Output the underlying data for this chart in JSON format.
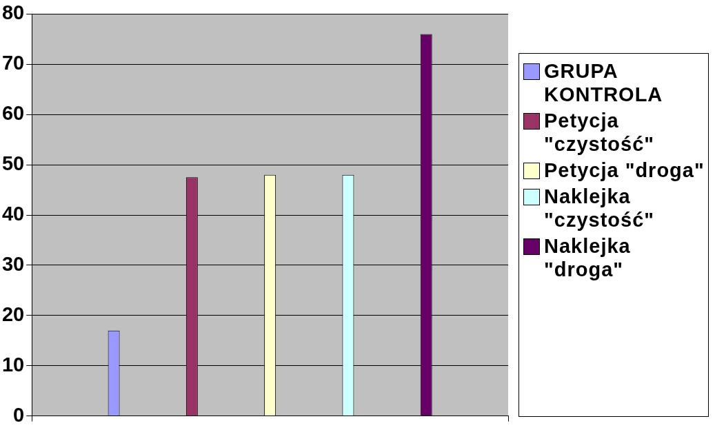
{
  "chart_data": {
    "type": "bar",
    "categories": [
      null
    ],
    "series": [
      {
        "name": "GRUPA KONTROLA",
        "color": "#9999ff",
        "values": [
          17
        ]
      },
      {
        "name": "Petycja \"czystość\"",
        "color": "#993366",
        "values": [
          47.5
        ]
      },
      {
        "name": "Petycja \"droga\"",
        "color": "#ffffcc",
        "values": [
          48
        ]
      },
      {
        "name": "Naklejka \"czystość\"",
        "color": "#ccffff",
        "values": [
          48
        ]
      },
      {
        "name": "Naklejka \"droga\"",
        "color": "#660066",
        "values": [
          76
        ]
      }
    ],
    "ylim": [
      0,
      80
    ],
    "yticks": [
      0,
      10,
      20,
      30,
      40,
      50,
      60,
      70,
      80
    ],
    "grid": "y",
    "legend": "right"
  }
}
